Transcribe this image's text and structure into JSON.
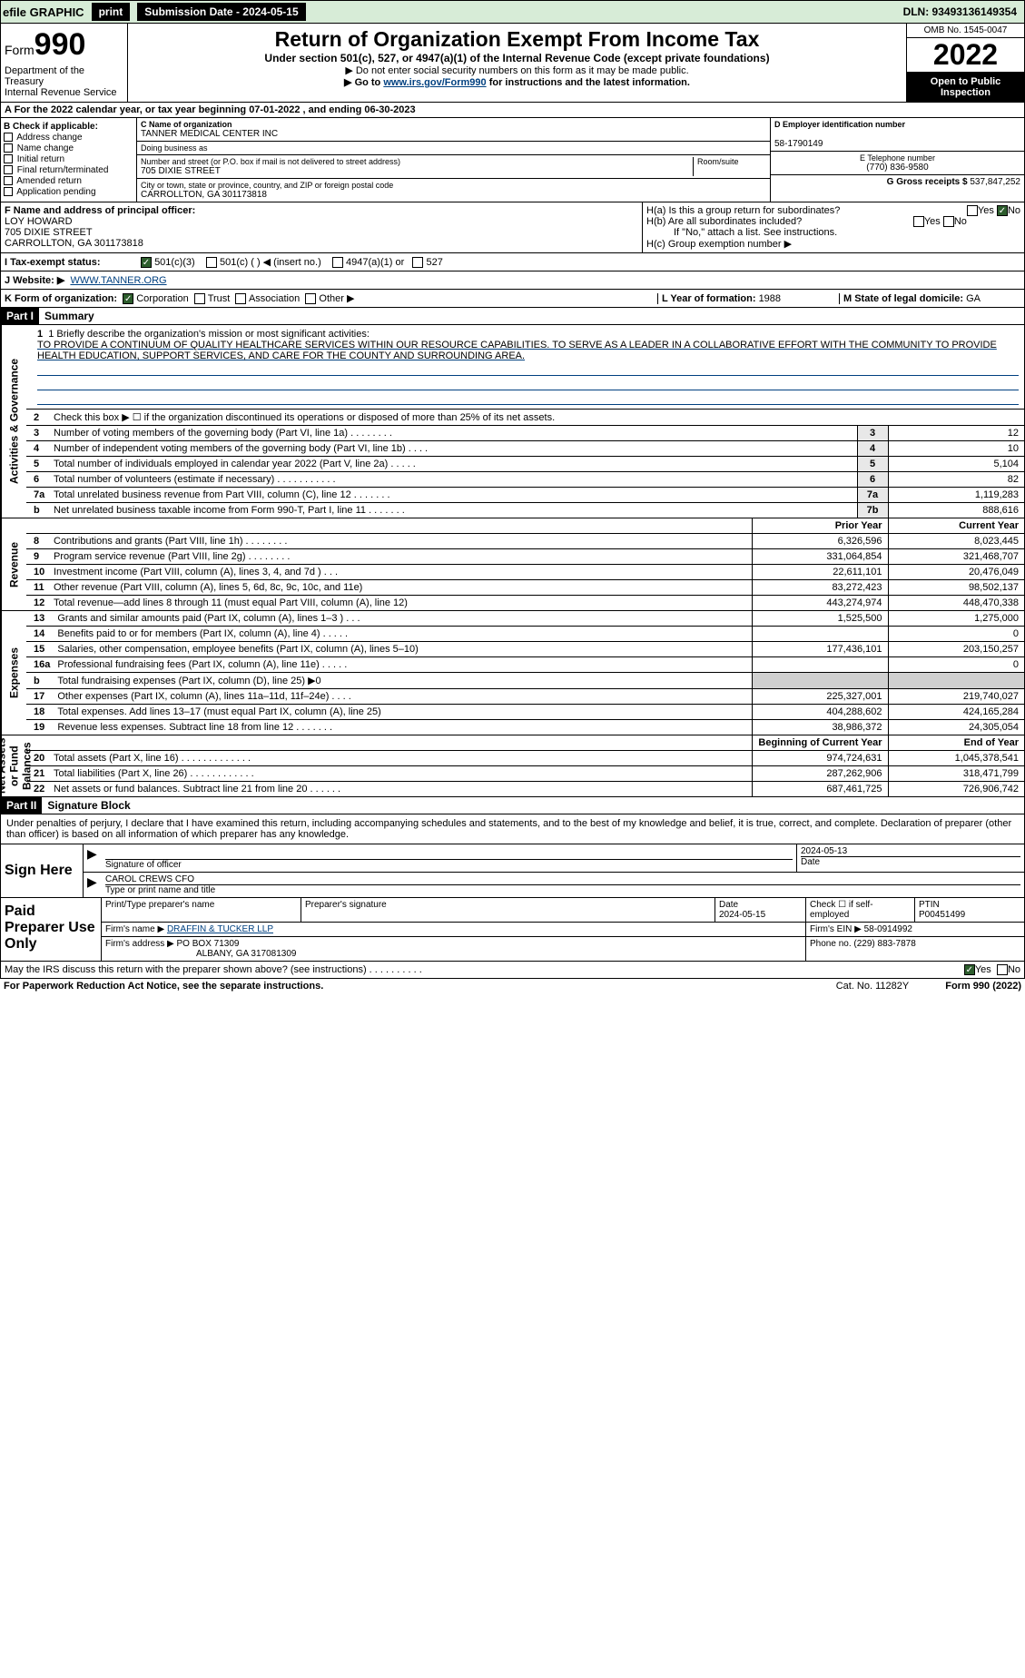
{
  "topbar": {
    "efile": "efile GRAPHIC",
    "print": "print",
    "subdate": "Submission Date - 2024-05-15",
    "dln": "DLN: 93493136149354"
  },
  "header": {
    "form_prefix": "Form",
    "form_number": "990",
    "dept": "Department of the Treasury",
    "irs": "Internal Revenue Service",
    "title": "Return of Organization Exempt From Income Tax",
    "subtitle": "Under section 501(c), 527, or 4947(a)(1) of the Internal Revenue Code (except private foundations)",
    "note1": "▶ Do not enter social security numbers on this form as it may be made public.",
    "note2_pre": "▶ Go to ",
    "note2_link": "www.irs.gov/Form990",
    "note2_post": " for instructions and the latest information.",
    "omb": "OMB No. 1545-0047",
    "year": "2022",
    "openpub": "Open to Public Inspection"
  },
  "row_a": "A For the 2022 calendar year, or tax year beginning 07-01-2022    , and ending 06-30-2023",
  "col_b": {
    "title": "B Check if applicable:",
    "items": [
      "Address change",
      "Name change",
      "Initial return",
      "Final return/terminated",
      "Amended return",
      "Application pending"
    ]
  },
  "col_c": {
    "name_lbl": "C Name of organization",
    "name": "TANNER MEDICAL CENTER INC",
    "dba_lbl": "Doing business as",
    "dba": "",
    "addr_lbl": "Number and street (or P.O. box if mail is not delivered to street address)",
    "room_lbl": "Room/suite",
    "addr": "705 DIXIE STREET",
    "city_lbl": "City or town, state or province, country, and ZIP or foreign postal code",
    "city": "CARROLLTON, GA  301173818"
  },
  "col_de": {
    "d_lbl": "D Employer identification number",
    "d_val": "58-1790149",
    "e_lbl": "E Telephone number",
    "e_val": "(770) 836-9580",
    "g_lbl": "G Gross receipts $",
    "g_val": "537,847,252"
  },
  "f": {
    "lbl": "F  Name and address of principal officer:",
    "name": "LOY HOWARD",
    "addr1": "705 DIXIE STREET",
    "addr2": "CARROLLTON, GA  301173818"
  },
  "h": {
    "a": "H(a)  Is this a group return for subordinates?",
    "b": "H(b)  Are all subordinates included?",
    "b_note": "If \"No,\" attach a list. See instructions.",
    "c": "H(c)  Group exemption number ▶",
    "yes": "Yes",
    "no": "No"
  },
  "i": {
    "lbl": "I   Tax-exempt status:",
    "opt1": "501(c)(3)",
    "opt2": "501(c) (  ) ◀ (insert no.)",
    "opt3": "4947(a)(1) or",
    "opt4": "527"
  },
  "j": {
    "lbl": "J   Website: ▶",
    "val": "WWW.TANNER.ORG"
  },
  "k": {
    "lbl": "K Form of organization:",
    "corp": "Corporation",
    "trust": "Trust",
    "assoc": "Association",
    "other": "Other ▶"
  },
  "l": {
    "lbl": "L Year of formation: ",
    "val": "1988"
  },
  "m": {
    "lbl": "M State of legal domicile: ",
    "val": "GA"
  },
  "part1": {
    "hdr": "Part I",
    "title": "Summary"
  },
  "mission": {
    "lbl": "1  Briefly describe the organization's mission or most significant activities:",
    "text": "TO PROVIDE A CONTINUUM OF QUALITY HEALTHCARE SERVICES WITHIN OUR RESOURCE CAPABILITIES. TO SERVE AS A LEADER IN A COLLABORATIVE EFFORT WITH THE COMMUNITY TO PROVIDE HEALTH EDUCATION, SUPPORT SERVICES, AND CARE FOR THE COUNTY AND SURROUNDING AREA."
  },
  "side": {
    "activities": "Activities & Governance",
    "revenue": "Revenue",
    "expenses": "Expenses",
    "netassets": "Net Assets or Fund Balances"
  },
  "lines_gov": [
    {
      "n": "2",
      "d": "Check this box ▶ ☐ if the organization discontinued its operations or disposed of more than 25% of its net assets.",
      "box": "",
      "v": ""
    },
    {
      "n": "3",
      "d": "Number of voting members of the governing body (Part VI, line 1a)   .    .    .    .    .    .    .    .",
      "box": "3",
      "v": "12"
    },
    {
      "n": "4",
      "d": "Number of independent voting members of the governing body (Part VI, line 1b)    .    .    .    .",
      "box": "4",
      "v": "10"
    },
    {
      "n": "5",
      "d": "Total number of individuals employed in calendar year 2022 (Part V, line 2a)   .    .    .    .    .",
      "box": "5",
      "v": "5,104"
    },
    {
      "n": "6",
      "d": "Total number of volunteers (estimate if necessary)    .     .     .     .     .     .     .     .     .     .     .",
      "box": "6",
      "v": "82"
    },
    {
      "n": "7a",
      "d": "Total unrelated business revenue from Part VIII, column (C), line 12   .    .    .    .    .    .    .",
      "box": "7a",
      "v": "1,119,283"
    },
    {
      "n": "b",
      "d": "Net unrelated business taxable income from Form 990-T, Part I, line 11   .    .    .    .    .    .    .",
      "box": "7b",
      "v": "888,616"
    }
  ],
  "col_hdrs": {
    "prior": "Prior Year",
    "current": "Current Year"
  },
  "lines_rev": [
    {
      "n": "8",
      "d": "Contributions and grants (Part VIII, line 1h)   .    .    .    .    .    .    .    .",
      "p": "6,326,596",
      "c": "8,023,445"
    },
    {
      "n": "9",
      "d": "Program service revenue (Part VIII, line 2g)   .    .    .    .    .    .    .    .",
      "p": "331,064,854",
      "c": "321,468,707"
    },
    {
      "n": "10",
      "d": "Investment income (Part VIII, column (A), lines 3, 4, and 7d )    .    .    .",
      "p": "22,611,101",
      "c": "20,476,049"
    },
    {
      "n": "11",
      "d": "Other revenue (Part VIII, column (A), lines 5, 6d, 8c, 9c, 10c, and 11e)",
      "p": "83,272,423",
      "c": "98,502,137"
    },
    {
      "n": "12",
      "d": "Total revenue—add lines 8 through 11 (must equal Part VIII, column (A), line 12)",
      "p": "443,274,974",
      "c": "448,470,338"
    }
  ],
  "lines_exp": [
    {
      "n": "13",
      "d": "Grants and similar amounts paid (Part IX, column (A), lines 1–3 )   .    .    .",
      "p": "1,525,500",
      "c": "1,275,000"
    },
    {
      "n": "14",
      "d": "Benefits paid to or for members (Part IX, column (A), line 4)   .    .    .    .    .",
      "p": "",
      "c": "0"
    },
    {
      "n": "15",
      "d": "Salaries, other compensation, employee benefits (Part IX, column (A), lines 5–10)",
      "p": "177,436,101",
      "c": "203,150,257"
    },
    {
      "n": "16a",
      "d": "Professional fundraising fees (Part IX, column (A), line 11e)   .    .    .    .    .",
      "p": "",
      "c": "0"
    },
    {
      "n": "b",
      "d": "Total fundraising expenses (Part IX, column (D), line 25) ▶0",
      "p": "grey",
      "c": "grey"
    },
    {
      "n": "17",
      "d": "Other expenses (Part IX, column (A), lines 11a–11d, 11f–24e)   .    .    .    .",
      "p": "225,327,001",
      "c": "219,740,027"
    },
    {
      "n": "18",
      "d": "Total expenses. Add lines 13–17 (must equal Part IX, column (A), line 25)",
      "p": "404,288,602",
      "c": "424,165,284"
    },
    {
      "n": "19",
      "d": "Revenue less expenses. Subtract line 18 from line 12   .    .    .    .    .    .    .",
      "p": "38,986,372",
      "c": "24,305,054"
    }
  ],
  "col_hdrs2": {
    "beg": "Beginning of Current Year",
    "end": "End of Year"
  },
  "lines_net": [
    {
      "n": "20",
      "d": "Total assets (Part X, line 16)   .    .    .    .    .    .    .    .    .    .    .    .    .",
      "p": "974,724,631",
      "c": "1,045,378,541"
    },
    {
      "n": "21",
      "d": "Total liabilities (Part X, line 26)   .    .    .    .    .    .    .    .    .    .    .    .",
      "p": "287,262,906",
      "c": "318,471,799"
    },
    {
      "n": "22",
      "d": "Net assets or fund balances. Subtract line 21 from line 20   .    .    .    .    .    .",
      "p": "687,461,725",
      "c": "726,906,742"
    }
  ],
  "part2": {
    "hdr": "Part II",
    "title": "Signature Block"
  },
  "sig": {
    "penalty": "Under penalties of perjury, I declare that I have examined this return, including accompanying schedules and statements, and to the best of my knowledge and belief, it is true, correct, and complete. Declaration of preparer (other than officer) is based on all information of which preparer has any knowledge.",
    "signhere": "Sign Here",
    "sigoff_lbl": "Signature of officer",
    "date": "2024-05-13",
    "date_lbl": "Date",
    "name": "CAROL CREWS CFO",
    "name_lbl": "Type or print name and title"
  },
  "prep": {
    "title": "Paid Preparer Use Only",
    "h1": "Print/Type preparer's name",
    "h2": "Preparer's signature",
    "h3": "Date",
    "h3v": "2024-05-15",
    "h4": "Check ☐ if self-employed",
    "h5": "PTIN",
    "h5v": "P00451499",
    "firm_lbl": "Firm's name    ▶",
    "firm": "DRAFFIN & TUCKER LLP",
    "ein_lbl": "Firm's EIN ▶",
    "ein": "58-0914992",
    "addr_lbl": "Firm's address ▶",
    "addr1": "PO BOX 71309",
    "addr2": "ALBANY, GA  317081309",
    "phone_lbl": "Phone no.",
    "phone": "(229) 883-7878"
  },
  "footer": {
    "q": "May the IRS discuss this return with the preparer shown above? (see instructions)    .     .     .     .     .     .     .     .     .     .",
    "yes": "Yes",
    "no": "No"
  },
  "bottom": {
    "pra": "For Paperwork Reduction Act Notice, see the separate instructions.",
    "cat": "Cat. No. 11282Y",
    "form": "Form 990 (2022)"
  }
}
